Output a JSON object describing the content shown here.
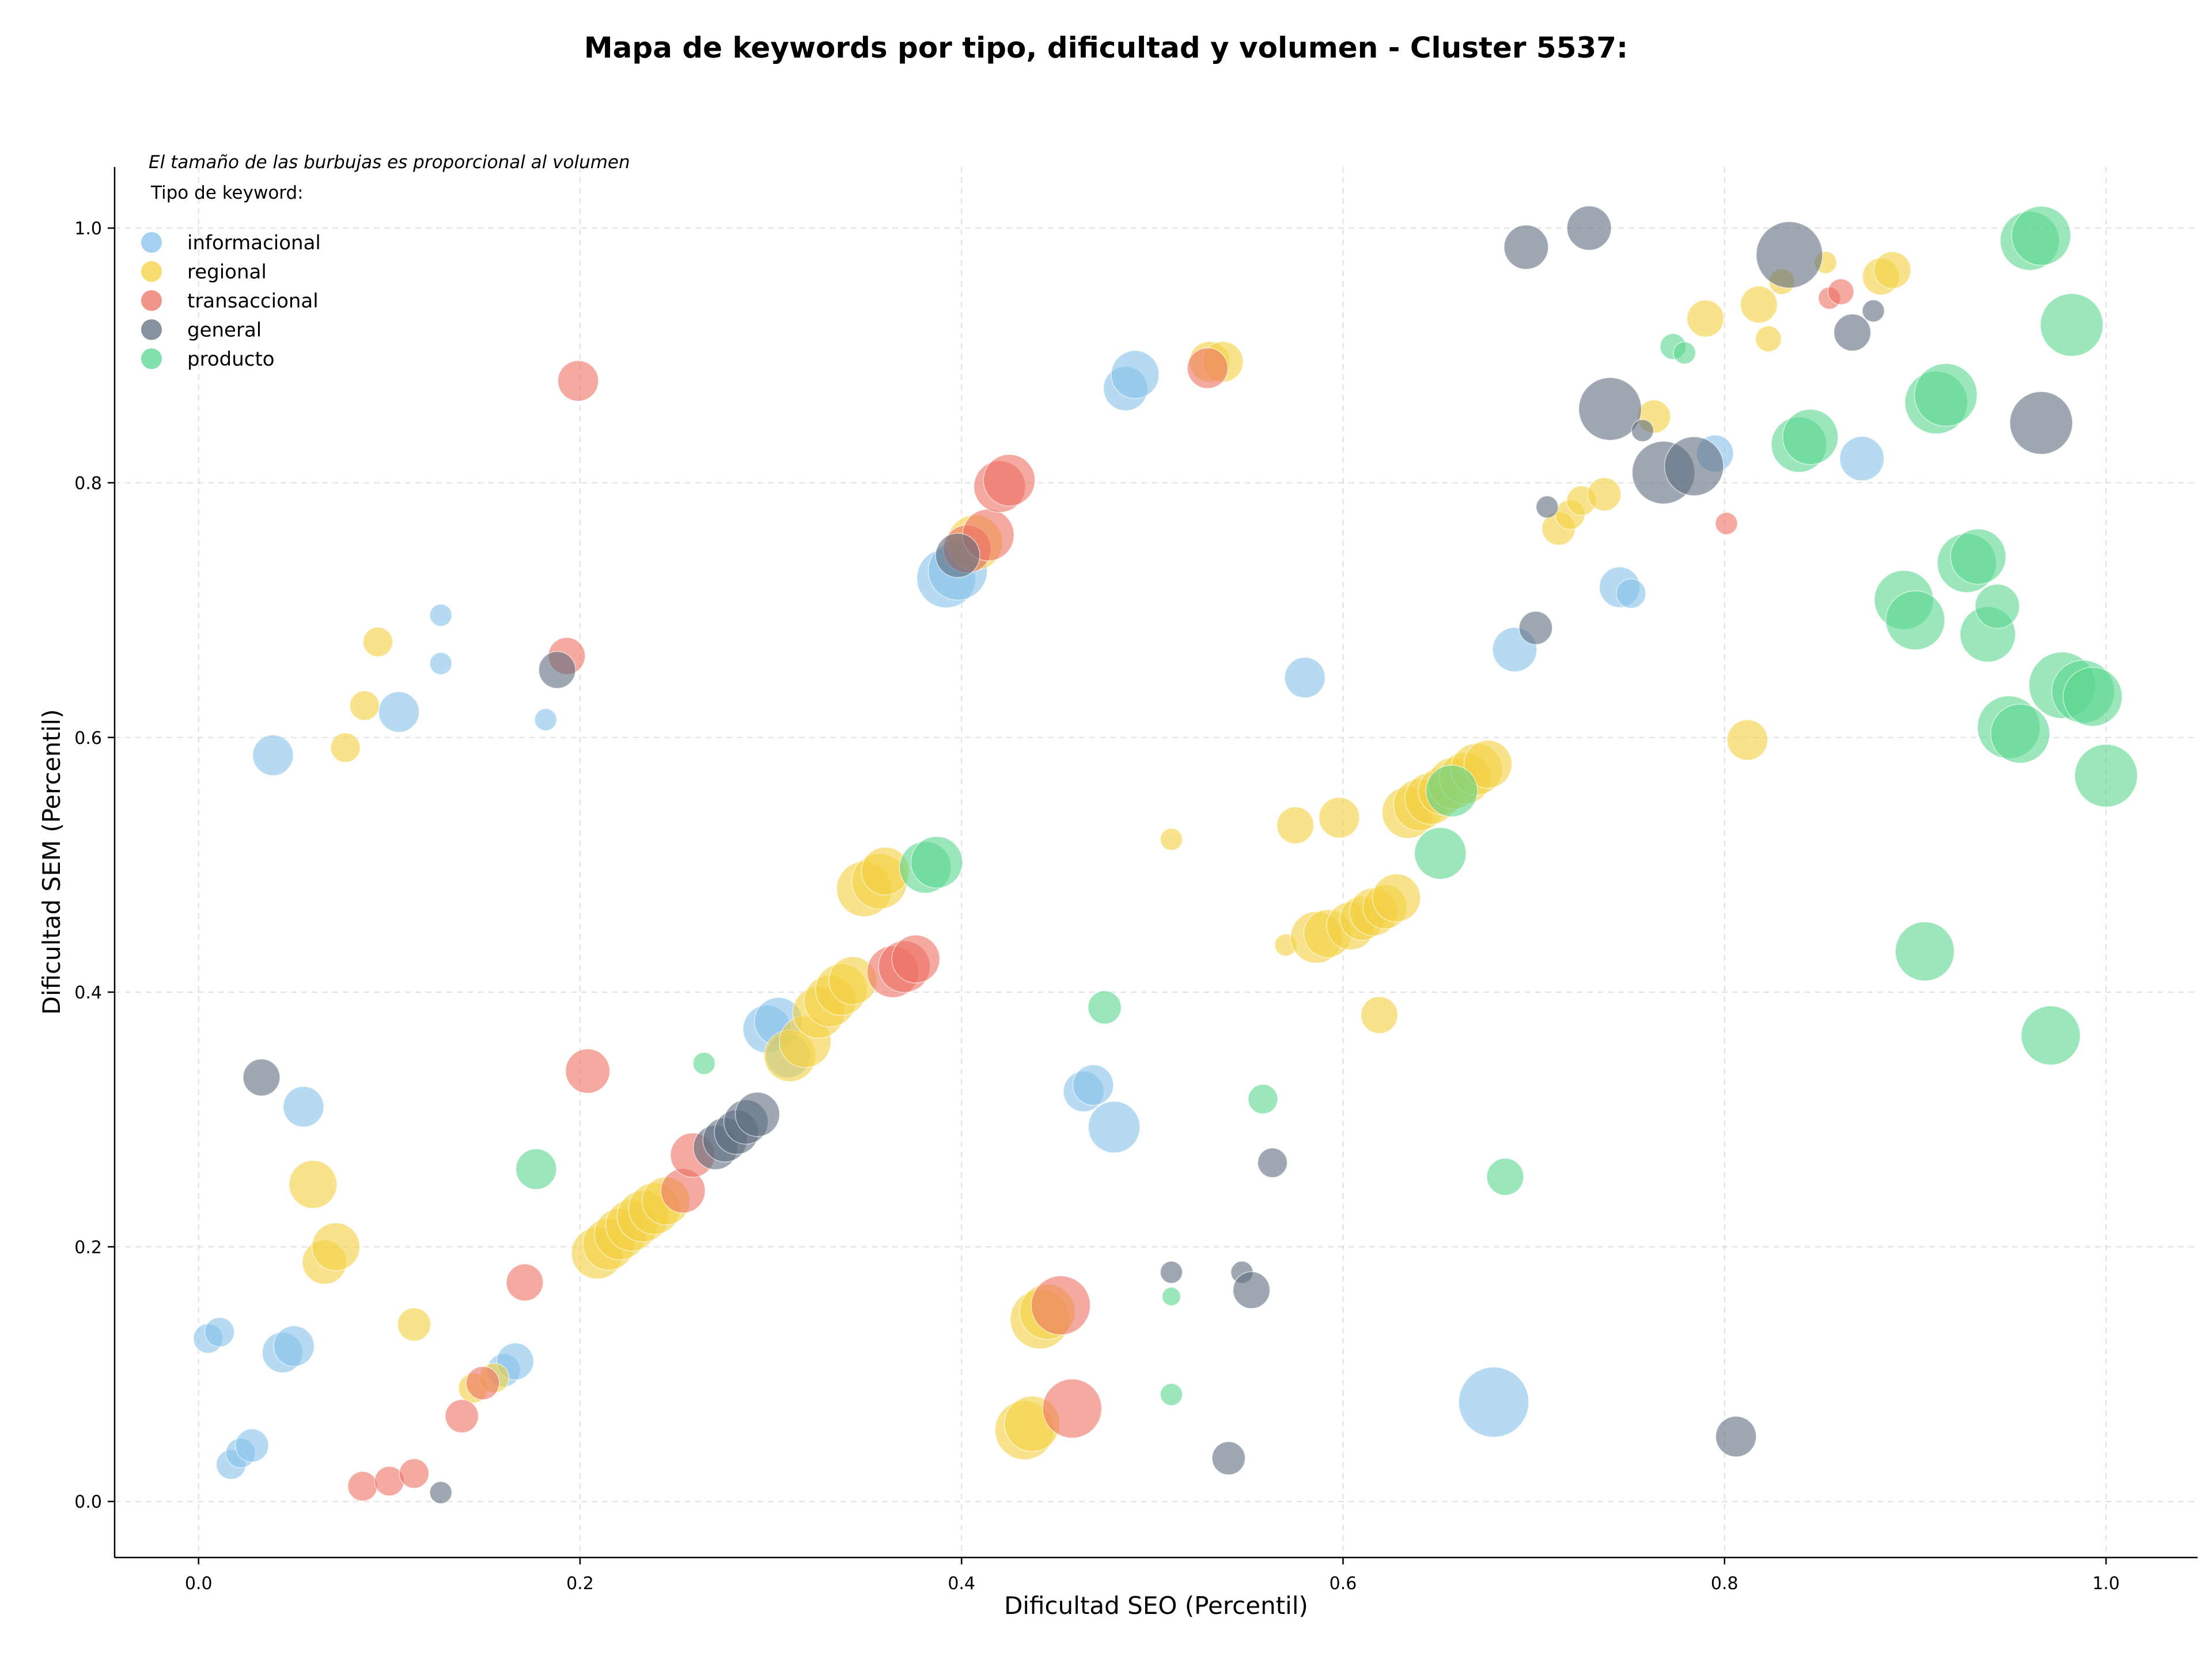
{
  "chart_data": {
    "type": "scatter",
    "title": "Mapa de keywords por tipo, dificultad y volumen - Cluster 5537:",
    "xlabel": "Dificultad SEO (Percentil)",
    "ylabel": "Dificultad SEM (Percentil)",
    "xlim": [
      -0.044,
      1.048
    ],
    "ylim": [
      -0.044,
      1.048
    ],
    "xticks": [
      "0.0",
      "0.2",
      "0.4",
      "0.6",
      "0.8",
      "1.0"
    ],
    "yticks": [
      "0.0",
      "0.2",
      "0.4",
      "0.6",
      "0.8",
      "1.0"
    ],
    "grid": true,
    "note": "El tamaño de las burbujas es proporcional al volumen",
    "legend": {
      "title": "Tipo de keyword:",
      "placement": "top-left",
      "entries": [
        {
          "name": "informacional",
          "color": "#85c1e9"
        },
        {
          "name": "regional",
          "color": "#f4d03f"
        },
        {
          "name": "transaccional",
          "color": "#ec7063"
        },
        {
          "name": "general",
          "color": "#5d6d7e"
        },
        {
          "name": "producto",
          "color": "#58d68d"
        }
      ]
    },
    "series": [
      {
        "name": "informacional",
        "color": "#85c1e9",
        "points": [
          {
            "x": 0.005,
            "y": 0.128,
            "s": 0.8
          },
          {
            "x": 0.011,
            "y": 0.133,
            "s": 0.8
          },
          {
            "x": 0.017,
            "y": 0.029,
            "s": 0.8
          },
          {
            "x": 0.022,
            "y": 0.038,
            "s": 0.8
          },
          {
            "x": 0.028,
            "y": 0.044,
            "s": 0.9
          },
          {
            "x": 0.039,
            "y": 0.586,
            "s": 1.1
          },
          {
            "x": 0.044,
            "y": 0.117,
            "s": 1.1
          },
          {
            "x": 0.05,
            "y": 0.122,
            "s": 1.1
          },
          {
            "x": 0.055,
            "y": 0.31,
            "s": 1.1
          },
          {
            "x": 0.105,
            "y": 0.62,
            "s": 1.1
          },
          {
            "x": 0.127,
            "y": 0.696,
            "s": 0.6
          },
          {
            "x": 0.127,
            "y": 0.658,
            "s": 0.6
          },
          {
            "x": 0.16,
            "y": 0.103,
            "s": 0.9
          },
          {
            "x": 0.166,
            "y": 0.11,
            "s": 1.0
          },
          {
            "x": 0.182,
            "y": 0.614,
            "s": 0.6
          },
          {
            "x": 0.298,
            "y": 0.371,
            "s": 1.3
          },
          {
            "x": 0.304,
            "y": 0.377,
            "s": 1.3
          },
          {
            "x": 0.309,
            "y": 0.35,
            "s": 1.2
          },
          {
            "x": 0.392,
            "y": 0.725,
            "s": 1.6
          },
          {
            "x": 0.398,
            "y": 0.731,
            "s": 1.6
          },
          {
            "x": 0.464,
            "y": 0.322,
            "s": 1.1
          },
          {
            "x": 0.469,
            "y": 0.327,
            "s": 1.1
          },
          {
            "x": 0.48,
            "y": 0.294,
            "s": 1.4
          },
          {
            "x": 0.486,
            "y": 0.874,
            "s": 1.2
          },
          {
            "x": 0.491,
            "y": 0.885,
            "s": 1.3
          },
          {
            "x": 0.58,
            "y": 0.647,
            "s": 1.1
          },
          {
            "x": 0.679,
            "y": 0.078,
            "s": 1.9
          },
          {
            "x": 0.69,
            "y": 0.669,
            "s": 1.2
          },
          {
            "x": 0.745,
            "y": 0.718,
            "s": 1.1
          },
          {
            "x": 0.751,
            "y": 0.713,
            "s": 0.8
          },
          {
            "x": 0.795,
            "y": 0.823,
            "s": 1.0
          },
          {
            "x": 0.872,
            "y": 0.819,
            "s": 1.2
          }
        ]
      },
      {
        "name": "regional",
        "color": "#f4d03f",
        "points": [
          {
            "x": 0.06,
            "y": 0.249,
            "s": 1.3
          },
          {
            "x": 0.066,
            "y": 0.188,
            "s": 1.2
          },
          {
            "x": 0.072,
            "y": 0.2,
            "s": 1.3
          },
          {
            "x": 0.077,
            "y": 0.592,
            "s": 0.8
          },
          {
            "x": 0.087,
            "y": 0.625,
            "s": 0.8
          },
          {
            "x": 0.094,
            "y": 0.675,
            "s": 0.8
          },
          {
            "x": 0.113,
            "y": 0.139,
            "s": 0.9
          },
          {
            "x": 0.144,
            "y": 0.089,
            "s": 0.8
          },
          {
            "x": 0.155,
            "y": 0.097,
            "s": 0.8
          },
          {
            "x": 0.209,
            "y": 0.195,
            "s": 1.4
          },
          {
            "x": 0.215,
            "y": 0.202,
            "s": 1.4
          },
          {
            "x": 0.221,
            "y": 0.21,
            "s": 1.4
          },
          {
            "x": 0.227,
            "y": 0.217,
            "s": 1.4
          },
          {
            "x": 0.233,
            "y": 0.224,
            "s": 1.4
          },
          {
            "x": 0.239,
            "y": 0.23,
            "s": 1.4
          },
          {
            "x": 0.245,
            "y": 0.236,
            "s": 1.3
          },
          {
            "x": 0.31,
            "y": 0.35,
            "s": 1.4
          },
          {
            "x": 0.318,
            "y": 0.361,
            "s": 1.4
          },
          {
            "x": 0.325,
            "y": 0.384,
            "s": 1.4
          },
          {
            "x": 0.331,
            "y": 0.393,
            "s": 1.4
          },
          {
            "x": 0.337,
            "y": 0.402,
            "s": 1.4
          },
          {
            "x": 0.343,
            "y": 0.409,
            "s": 1.3
          },
          {
            "x": 0.349,
            "y": 0.481,
            "s": 1.5
          },
          {
            "x": 0.357,
            "y": 0.487,
            "s": 1.5
          },
          {
            "x": 0.36,
            "y": 0.495,
            "s": 1.3
          },
          {
            "x": 0.407,
            "y": 0.753,
            "s": 1.5
          },
          {
            "x": 0.433,
            "y": 0.056,
            "s": 1.6
          },
          {
            "x": 0.437,
            "y": 0.061,
            "s": 1.5
          },
          {
            "x": 0.441,
            "y": 0.143,
            "s": 1.6
          },
          {
            "x": 0.445,
            "y": 0.149,
            "s": 1.5
          },
          {
            "x": 0.51,
            "y": 0.52,
            "s": 0.6
          },
          {
            "x": 0.53,
            "y": 0.895,
            "s": 1.1
          },
          {
            "x": 0.537,
            "y": 0.895,
            "s": 1.1
          },
          {
            "x": 0.57,
            "y": 0.437,
            "s": 0.6
          },
          {
            "x": 0.575,
            "y": 0.531,
            "s": 1.0
          },
          {
            "x": 0.586,
            "y": 0.443,
            "s": 1.4
          },
          {
            "x": 0.592,
            "y": 0.446,
            "s": 1.3
          },
          {
            "x": 0.598,
            "y": 0.537,
            "s": 1.1
          },
          {
            "x": 0.604,
            "y": 0.452,
            "s": 1.3
          },
          {
            "x": 0.61,
            "y": 0.458,
            "s": 1.2
          },
          {
            "x": 0.616,
            "y": 0.463,
            "s": 1.3
          },
          {
            "x": 0.619,
            "y": 0.382,
            "s": 1.0
          },
          {
            "x": 0.622,
            "y": 0.467,
            "s": 1.2
          },
          {
            "x": 0.628,
            "y": 0.474,
            "s": 1.3
          },
          {
            "x": 0.634,
            "y": 0.541,
            "s": 1.4
          },
          {
            "x": 0.64,
            "y": 0.547,
            "s": 1.4
          },
          {
            "x": 0.646,
            "y": 0.552,
            "s": 1.4
          },
          {
            "x": 0.652,
            "y": 0.558,
            "s": 1.3
          },
          {
            "x": 0.658,
            "y": 0.564,
            "s": 1.4
          },
          {
            "x": 0.664,
            "y": 0.568,
            "s": 1.4
          },
          {
            "x": 0.67,
            "y": 0.575,
            "s": 1.4
          },
          {
            "x": 0.676,
            "y": 0.579,
            "s": 1.3
          },
          {
            "x": 0.713,
            "y": 0.764,
            "s": 0.9
          },
          {
            "x": 0.719,
            "y": 0.775,
            "s": 0.8
          },
          {
            "x": 0.725,
            "y": 0.786,
            "s": 0.8
          },
          {
            "x": 0.737,
            "y": 0.791,
            "s": 0.9
          },
          {
            "x": 0.763,
            "y": 0.852,
            "s": 0.9
          },
          {
            "x": 0.79,
            "y": 0.929,
            "s": 1.0
          },
          {
            "x": 0.812,
            "y": 0.598,
            "s": 1.1
          },
          {
            "x": 0.818,
            "y": 0.94,
            "s": 1.0
          },
          {
            "x": 0.823,
            "y": 0.913,
            "s": 0.7
          },
          {
            "x": 0.83,
            "y": 0.958,
            "s": 0.7
          },
          {
            "x": 0.853,
            "y": 0.973,
            "s": 0.6
          },
          {
            "x": 0.882,
            "y": 0.962,
            "s": 1.0
          },
          {
            "x": 0.888,
            "y": 0.967,
            "s": 1.0
          }
        ]
      },
      {
        "name": "transaccional",
        "color": "#ec7063",
        "points": [
          {
            "x": 0.086,
            "y": 0.012,
            "s": 0.8
          },
          {
            "x": 0.1,
            "y": 0.016,
            "s": 0.8
          },
          {
            "x": 0.113,
            "y": 0.022,
            "s": 0.8
          },
          {
            "x": 0.138,
            "y": 0.067,
            "s": 0.9
          },
          {
            "x": 0.149,
            "y": 0.093,
            "s": 0.9
          },
          {
            "x": 0.171,
            "y": 0.172,
            "s": 1.0
          },
          {
            "x": 0.193,
            "y": 0.664,
            "s": 1.0
          },
          {
            "x": 0.199,
            "y": 0.88,
            "s": 1.1
          },
          {
            "x": 0.204,
            "y": 0.338,
            "s": 1.2
          },
          {
            "x": 0.254,
            "y": 0.244,
            "s": 1.2
          },
          {
            "x": 0.259,
            "y": 0.272,
            "s": 1.2
          },
          {
            "x": 0.364,
            "y": 0.416,
            "s": 1.4
          },
          {
            "x": 0.37,
            "y": 0.42,
            "s": 1.4
          },
          {
            "x": 0.376,
            "y": 0.426,
            "s": 1.3
          },
          {
            "x": 0.403,
            "y": 0.748,
            "s": 1.3
          },
          {
            "x": 0.414,
            "y": 0.759,
            "s": 1.4
          },
          {
            "x": 0.42,
            "y": 0.797,
            "s": 1.4
          },
          {
            "x": 0.425,
            "y": 0.802,
            "s": 1.4
          },
          {
            "x": 0.452,
            "y": 0.154,
            "s": 1.6
          },
          {
            "x": 0.458,
            "y": 0.073,
            "s": 1.6
          },
          {
            "x": 0.529,
            "y": 0.89,
            "s": 1.1
          },
          {
            "x": 0.801,
            "y": 0.768,
            "s": 0.6
          },
          {
            "x": 0.855,
            "y": 0.945,
            "s": 0.6
          },
          {
            "x": 0.861,
            "y": 0.95,
            "s": 0.7
          }
        ]
      },
      {
        "name": "general",
        "color": "#5d6d7e",
        "points": [
          {
            "x": 0.033,
            "y": 0.333,
            "s": 1.0
          },
          {
            "x": 0.127,
            "y": 0.007,
            "s": 0.6
          },
          {
            "x": 0.188,
            "y": 0.653,
            "s": 1.0
          },
          {
            "x": 0.271,
            "y": 0.278,
            "s": 1.2
          },
          {
            "x": 0.276,
            "y": 0.284,
            "s": 1.2
          },
          {
            "x": 0.282,
            "y": 0.29,
            "s": 1.2
          },
          {
            "x": 0.287,
            "y": 0.298,
            "s": 1.2
          },
          {
            "x": 0.293,
            "y": 0.304,
            "s": 1.2
          },
          {
            "x": 0.398,
            "y": 0.743,
            "s": 1.2
          },
          {
            "x": 0.51,
            "y": 0.18,
            "s": 0.6
          },
          {
            "x": 0.54,
            "y": 0.034,
            "s": 0.9
          },
          {
            "x": 0.547,
            "y": 0.18,
            "s": 0.6
          },
          {
            "x": 0.552,
            "y": 0.166,
            "s": 1.0
          },
          {
            "x": 0.563,
            "y": 0.266,
            "s": 0.8
          },
          {
            "x": 0.696,
            "y": 0.985,
            "s": 1.2
          },
          {
            "x": 0.701,
            "y": 0.686,
            "s": 0.9
          },
          {
            "x": 0.707,
            "y": 0.781,
            "s": 0.6
          },
          {
            "x": 0.729,
            "y": 1.0,
            "s": 1.2
          },
          {
            "x": 0.74,
            "y": 0.858,
            "s": 1.7
          },
          {
            "x": 0.757,
            "y": 0.841,
            "s": 0.6
          },
          {
            "x": 0.768,
            "y": 0.808,
            "s": 1.7
          },
          {
            "x": 0.784,
            "y": 0.813,
            "s": 1.6
          },
          {
            "x": 0.806,
            "y": 0.051,
            "s": 1.1
          },
          {
            "x": 0.834,
            "y": 0.979,
            "s": 1.8
          },
          {
            "x": 0.867,
            "y": 0.918,
            "s": 1.0
          },
          {
            "x": 0.878,
            "y": 0.935,
            "s": 0.6
          },
          {
            "x": 0.966,
            "y": 0.847,
            "s": 1.7
          }
        ]
      },
      {
        "name": "producto",
        "color": "#58d68d",
        "points": [
          {
            "x": 0.177,
            "y": 0.261,
            "s": 1.1
          },
          {
            "x": 0.265,
            "y": 0.344,
            "s": 0.6
          },
          {
            "x": 0.381,
            "y": 0.498,
            "s": 1.4
          },
          {
            "x": 0.387,
            "y": 0.502,
            "s": 1.4
          },
          {
            "x": 0.475,
            "y": 0.388,
            "s": 0.9
          },
          {
            "x": 0.51,
            "y": 0.161,
            "s": 0.5
          },
          {
            "x": 0.51,
            "y": 0.084,
            "s": 0.6
          },
          {
            "x": 0.558,
            "y": 0.316,
            "s": 0.8
          },
          {
            "x": 0.651,
            "y": 0.509,
            "s": 1.4
          },
          {
            "x": 0.657,
            "y": 0.558,
            "s": 1.4
          },
          {
            "x": 0.685,
            "y": 0.255,
            "s": 1.0
          },
          {
            "x": 0.773,
            "y": 0.907,
            "s": 0.7
          },
          {
            "x": 0.779,
            "y": 0.902,
            "s": 0.6
          },
          {
            "x": 0.839,
            "y": 0.83,
            "s": 1.5
          },
          {
            "x": 0.845,
            "y": 0.836,
            "s": 1.5
          },
          {
            "x": 0.894,
            "y": 0.708,
            "s": 1.6
          },
          {
            "x": 0.9,
            "y": 0.692,
            "s": 1.6
          },
          {
            "x": 0.905,
            "y": 0.432,
            "s": 1.6
          },
          {
            "x": 0.911,
            "y": 0.863,
            "s": 1.7
          },
          {
            "x": 0.916,
            "y": 0.869,
            "s": 1.7
          },
          {
            "x": 0.927,
            "y": 0.737,
            "s": 1.6
          },
          {
            "x": 0.933,
            "y": 0.742,
            "s": 1.5
          },
          {
            "x": 0.938,
            "y": 0.681,
            "s": 1.5
          },
          {
            "x": 0.943,
            "y": 0.703,
            "s": 1.2
          },
          {
            "x": 0.949,
            "y": 0.608,
            "s": 1.7
          },
          {
            "x": 0.955,
            "y": 0.603,
            "s": 1.6
          },
          {
            "x": 0.96,
            "y": 0.99,
            "s": 1.6
          },
          {
            "x": 0.966,
            "y": 0.994,
            "s": 1.6
          },
          {
            "x": 0.971,
            "y": 0.366,
            "s": 1.6
          },
          {
            "x": 0.977,
            "y": 0.641,
            "s": 1.8
          },
          {
            "x": 0.982,
            "y": 0.924,
            "s": 1.7
          },
          {
            "x": 0.988,
            "y": 0.636,
            "s": 1.7
          },
          {
            "x": 0.993,
            "y": 0.632,
            "s": 1.6
          },
          {
            "x": 1.0,
            "y": 0.57,
            "s": 1.7
          }
        ]
      }
    ]
  }
}
